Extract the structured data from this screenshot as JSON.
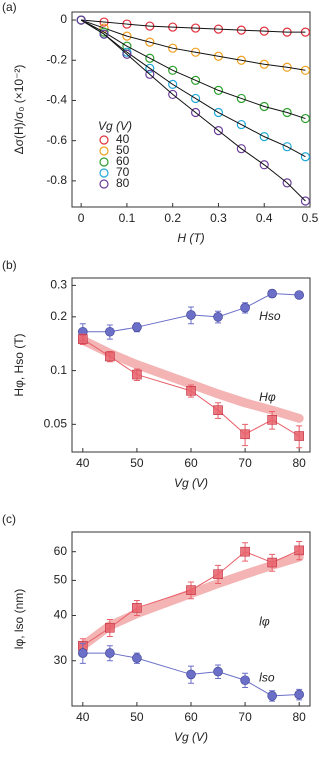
{
  "chart_data": [
    {
      "type": "scatter",
      "panel_label": "(a)",
      "x_label": "H (T)",
      "y_label": "Δσ(H)/σ₀ (×10⁻²)",
      "legend_title": "Vg (V)",
      "legend": "left",
      "x": [
        0,
        0.05,
        0.1,
        0.15,
        0.2,
        0.25,
        0.3,
        0.35,
        0.4,
        0.45,
        0.49
      ],
      "xlim": [
        -0.02,
        0.5
      ],
      "xticks": [
        0,
        0.1,
        0.2,
        0.3,
        0.4,
        0.5
      ],
      "ylim": [
        -0.93,
        0.04
      ],
      "yticks": [
        0,
        -0.2,
        -0.4,
        -0.6,
        -0.8
      ],
      "fit_color": "#111111",
      "series": [
        {
          "name": "40",
          "color": "#e0303c",
          "values": [
            0,
            -0.01,
            -0.02,
            -0.03,
            -0.035,
            -0.04,
            -0.045,
            -0.05,
            -0.055,
            -0.06,
            -0.06
          ]
        },
        {
          "name": "50",
          "color": "#f0a020",
          "values": [
            0,
            -0.04,
            -0.08,
            -0.11,
            -0.14,
            -0.16,
            -0.18,
            -0.2,
            -0.22,
            -0.235,
            -0.25
          ]
        },
        {
          "name": "60",
          "color": "#2ca02c",
          "values": [
            0,
            -0.06,
            -0.13,
            -0.19,
            -0.25,
            -0.3,
            -0.35,
            -0.39,
            -0.43,
            -0.46,
            -0.49
          ]
        },
        {
          "name": "70",
          "color": "#1fa8d8",
          "values": [
            0,
            -0.07,
            -0.16,
            -0.24,
            -0.32,
            -0.39,
            -0.46,
            -0.52,
            -0.58,
            -0.63,
            -0.68
          ]
        },
        {
          "name": "80",
          "color": "#6a3d9a",
          "values": [
            0,
            -0.07,
            -0.17,
            -0.27,
            -0.37,
            -0.46,
            -0.55,
            -0.64,
            -0.72,
            -0.81,
            -0.9
          ]
        }
      ]
    },
    {
      "type": "line",
      "panel_label": "(b)",
      "x_label": "Vg (V)",
      "y_label": "Hφ, Hso (T)",
      "x": [
        40,
        45,
        50,
        60,
        65,
        70,
        75,
        80
      ],
      "xlim": [
        38,
        82
      ],
      "xticks": [
        40,
        50,
        60,
        70,
        80
      ],
      "log_y": true,
      "ylim": [
        0.035,
        0.33
      ],
      "yticks": [
        0.05,
        0.1,
        0.2,
        0.3
      ],
      "band": {
        "color": "#f4b4b4",
        "values": [
          0.148,
          0.125,
          0.108,
          0.084,
          0.074,
          0.066,
          0.06,
          0.054
        ]
      },
      "series": [
        {
          "name": "Hso",
          "color": "#6b6fc8",
          "marker": "circle",
          "values": [
            0.165,
            0.165,
            0.175,
            0.205,
            0.2,
            0.225,
            0.27,
            0.265
          ],
          "errors": [
            0.018,
            0.015,
            0.01,
            0.022,
            0.015,
            0.015,
            0.012,
            0.01
          ]
        },
        {
          "name": "Hφ",
          "color": "#e8606a",
          "marker": "square",
          "values": [
            0.15,
            0.12,
            0.095,
            0.077,
            0.06,
            0.044,
            0.053,
            0.043
          ],
          "errors": [
            0.01,
            0.008,
            0.007,
            0.006,
            0.006,
            0.006,
            0.006,
            0.006
          ]
        }
      ]
    },
    {
      "type": "line",
      "panel_label": "(c)",
      "x_label": "Vg (V)",
      "y_label": "lφ, lso (nm)",
      "x": [
        40,
        45,
        50,
        60,
        65,
        70,
        75,
        80
      ],
      "xlim": [
        38,
        82
      ],
      "xticks": [
        40,
        50,
        60,
        70,
        80
      ],
      "log_y": true,
      "ylim": [
        22.5,
        68
      ],
      "yticks": [
        30,
        40,
        50,
        60
      ],
      "band": {
        "color": "#f4b4b4",
        "values": [
          33,
          37.5,
          40.5,
          46,
          49,
          52,
          55,
          58
        ]
      },
      "series": [
        {
          "name": "lφ",
          "color": "#e8606a",
          "marker": "square",
          "values": [
            33,
            37,
            42,
            47,
            52,
            60,
            56,
            60.5
          ],
          "errors": [
            1.5,
            2,
            2,
            2.5,
            3,
            3.5,
            3,
            3.5
          ]
        },
        {
          "name": "lso",
          "color": "#6b6fc8",
          "marker": "circle",
          "values": [
            31.5,
            31.5,
            30.5,
            27.5,
            28,
            26.5,
            24,
            24.2
          ],
          "errors": [
            2,
            1.5,
            1,
            1.5,
            1.2,
            1.2,
            0.8,
            0.8
          ]
        }
      ]
    }
  ]
}
